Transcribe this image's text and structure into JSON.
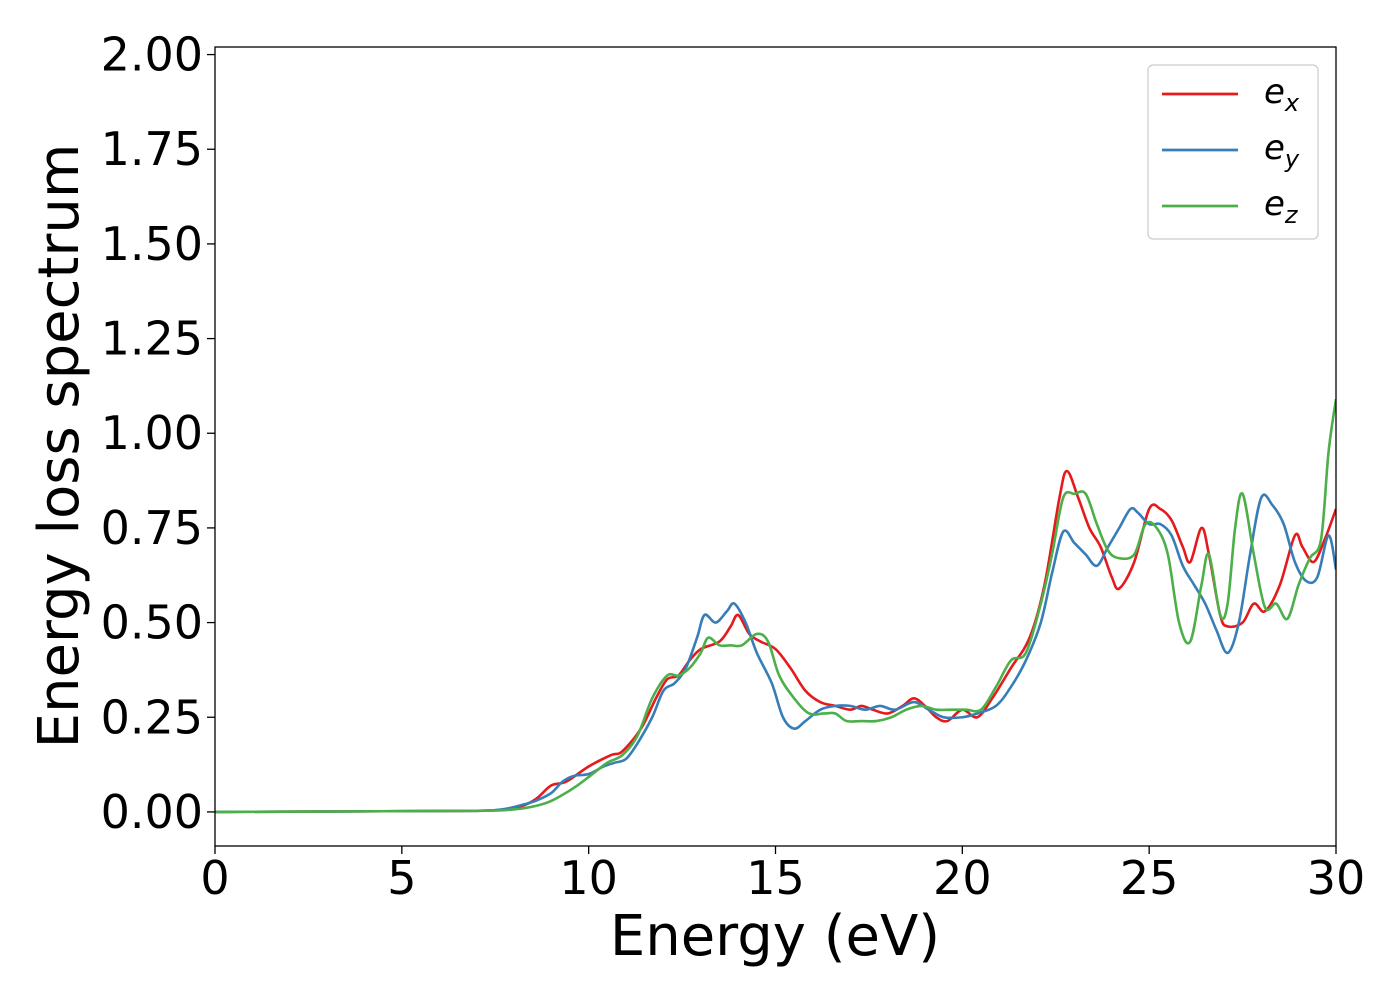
{
  "chart_data": {
    "type": "line",
    "xlabel": "Energy (eV)",
    "ylabel": "Energy loss spectrum",
    "xlim": [
      0,
      30
    ],
    "ylim": [
      -0.09,
      2.02
    ],
    "x_ticks": [
      0,
      5,
      10,
      15,
      20,
      25,
      30
    ],
    "x_tick_labels": [
      "0",
      "5",
      "10",
      "15",
      "20",
      "25",
      "30"
    ],
    "y_ticks": [
      0.0,
      0.25,
      0.5,
      0.75,
      1.0,
      1.25,
      1.5,
      1.75,
      2.0
    ],
    "y_tick_labels": [
      "0.00",
      "0.25",
      "0.50",
      "0.75",
      "1.00",
      "1.25",
      "1.50",
      "1.75",
      "2.00"
    ],
    "grid": false,
    "legend_position": "top-right",
    "series": [
      {
        "name": "e_x",
        "label_base": "e",
        "label_sub": "x",
        "color": "#e41a1c",
        "points": [
          [
            0,
            0
          ],
          [
            5,
            0.002
          ],
          [
            7,
            0.003
          ],
          [
            7.7,
            0.006
          ],
          [
            8.2,
            0.015
          ],
          [
            8.6,
            0.035
          ],
          [
            9.0,
            0.07
          ],
          [
            9.4,
            0.08
          ],
          [
            10.0,
            0.12
          ],
          [
            10.6,
            0.15
          ],
          [
            10.9,
            0.16
          ],
          [
            11.4,
            0.22
          ],
          [
            11.8,
            0.3
          ],
          [
            12.1,
            0.35
          ],
          [
            12.4,
            0.36
          ],
          [
            12.7,
            0.4
          ],
          [
            13.0,
            0.43
          ],
          [
            13.5,
            0.45
          ],
          [
            13.8,
            0.49
          ],
          [
            14.0,
            0.52
          ],
          [
            14.3,
            0.47
          ],
          [
            14.6,
            0.45
          ],
          [
            15.0,
            0.43
          ],
          [
            15.4,
            0.38
          ],
          [
            15.8,
            0.32
          ],
          [
            16.2,
            0.29
          ],
          [
            16.6,
            0.28
          ],
          [
            17.0,
            0.27
          ],
          [
            17.3,
            0.28
          ],
          [
            17.6,
            0.27
          ],
          [
            18.0,
            0.26
          ],
          [
            18.4,
            0.28
          ],
          [
            18.7,
            0.3
          ],
          [
            19.0,
            0.28
          ],
          [
            19.3,
            0.25
          ],
          [
            19.6,
            0.24
          ],
          [
            20.0,
            0.27
          ],
          [
            20.4,
            0.25
          ],
          [
            20.8,
            0.3
          ],
          [
            21.3,
            0.38
          ],
          [
            21.8,
            0.46
          ],
          [
            22.2,
            0.6
          ],
          [
            22.6,
            0.83
          ],
          [
            22.8,
            0.9
          ],
          [
            23.1,
            0.83
          ],
          [
            23.4,
            0.75
          ],
          [
            23.7,
            0.7
          ],
          [
            24.0,
            0.62
          ],
          [
            24.2,
            0.59
          ],
          [
            24.6,
            0.66
          ],
          [
            25.0,
            0.8
          ],
          [
            25.3,
            0.8
          ],
          [
            25.6,
            0.77
          ],
          [
            25.9,
            0.7
          ],
          [
            26.1,
            0.66
          ],
          [
            26.4,
            0.75
          ],
          [
            26.6,
            0.68
          ],
          [
            26.9,
            0.52
          ],
          [
            27.1,
            0.49
          ],
          [
            27.5,
            0.5
          ],
          [
            27.8,
            0.55
          ],
          [
            28.1,
            0.53
          ],
          [
            28.5,
            0.6
          ],
          [
            28.9,
            0.73
          ],
          [
            29.1,
            0.7
          ],
          [
            29.4,
            0.66
          ],
          [
            29.7,
            0.72
          ],
          [
            30.0,
            0.8
          ]
        ]
      },
      {
        "name": "e_y",
        "label_base": "e",
        "label_sub": "y",
        "color": "#377eb8",
        "points": [
          [
            0,
            0
          ],
          [
            5,
            0.002
          ],
          [
            7,
            0.003
          ],
          [
            7.7,
            0.007
          ],
          [
            8.2,
            0.018
          ],
          [
            8.6,
            0.03
          ],
          [
            9.0,
            0.05
          ],
          [
            9.3,
            0.08
          ],
          [
            9.6,
            0.095
          ],
          [
            10.0,
            0.1
          ],
          [
            10.4,
            0.12
          ],
          [
            10.7,
            0.13
          ],
          [
            11.0,
            0.14
          ],
          [
            11.3,
            0.18
          ],
          [
            11.7,
            0.25
          ],
          [
            12.0,
            0.32
          ],
          [
            12.3,
            0.34
          ],
          [
            12.6,
            0.38
          ],
          [
            12.9,
            0.46
          ],
          [
            13.1,
            0.52
          ],
          [
            13.4,
            0.5
          ],
          [
            13.7,
            0.53
          ],
          [
            13.9,
            0.55
          ],
          [
            14.2,
            0.5
          ],
          [
            14.5,
            0.42
          ],
          [
            14.9,
            0.34
          ],
          [
            15.2,
            0.25
          ],
          [
            15.5,
            0.22
          ],
          [
            15.8,
            0.24
          ],
          [
            16.2,
            0.27
          ],
          [
            16.6,
            0.28
          ],
          [
            17.0,
            0.28
          ],
          [
            17.4,
            0.27
          ],
          [
            17.8,
            0.28
          ],
          [
            18.2,
            0.27
          ],
          [
            18.7,
            0.29
          ],
          [
            19.1,
            0.27
          ],
          [
            19.5,
            0.25
          ],
          [
            20.0,
            0.25
          ],
          [
            20.4,
            0.26
          ],
          [
            20.9,
            0.28
          ],
          [
            21.3,
            0.33
          ],
          [
            21.7,
            0.4
          ],
          [
            22.1,
            0.5
          ],
          [
            22.4,
            0.63
          ],
          [
            22.7,
            0.74
          ],
          [
            23.0,
            0.71
          ],
          [
            23.3,
            0.68
          ],
          [
            23.6,
            0.65
          ],
          [
            23.9,
            0.7
          ],
          [
            24.2,
            0.75
          ],
          [
            24.5,
            0.8
          ],
          [
            24.7,
            0.79
          ],
          [
            25.0,
            0.76
          ],
          [
            25.3,
            0.76
          ],
          [
            25.6,
            0.73
          ],
          [
            25.9,
            0.65
          ],
          [
            26.2,
            0.6
          ],
          [
            26.5,
            0.55
          ],
          [
            26.8,
            0.48
          ],
          [
            27.1,
            0.42
          ],
          [
            27.4,
            0.5
          ],
          [
            27.7,
            0.68
          ],
          [
            28.0,
            0.83
          ],
          [
            28.3,
            0.81
          ],
          [
            28.6,
            0.76
          ],
          [
            28.9,
            0.66
          ],
          [
            29.2,
            0.61
          ],
          [
            29.5,
            0.62
          ],
          [
            29.8,
            0.73
          ],
          [
            30.0,
            0.64
          ]
        ]
      },
      {
        "name": "e_z",
        "label_base": "e",
        "label_sub": "z",
        "color": "#4daf4a",
        "points": [
          [
            0,
            0
          ],
          [
            5,
            0.002
          ],
          [
            7,
            0.003
          ],
          [
            7.8,
            0.005
          ],
          [
            8.4,
            0.012
          ],
          [
            8.9,
            0.025
          ],
          [
            9.3,
            0.045
          ],
          [
            9.7,
            0.07
          ],
          [
            10.1,
            0.1
          ],
          [
            10.5,
            0.13
          ],
          [
            10.9,
            0.15
          ],
          [
            11.3,
            0.2
          ],
          [
            11.7,
            0.3
          ],
          [
            12.1,
            0.36
          ],
          [
            12.4,
            0.36
          ],
          [
            12.7,
            0.38
          ],
          [
            13.0,
            0.42
          ],
          [
            13.2,
            0.46
          ],
          [
            13.5,
            0.44
          ],
          [
            13.8,
            0.44
          ],
          [
            14.1,
            0.44
          ],
          [
            14.5,
            0.47
          ],
          [
            14.8,
            0.45
          ],
          [
            15.1,
            0.36
          ],
          [
            15.5,
            0.3
          ],
          [
            15.9,
            0.26
          ],
          [
            16.3,
            0.26
          ],
          [
            16.6,
            0.26
          ],
          [
            16.9,
            0.24
          ],
          [
            17.3,
            0.24
          ],
          [
            17.7,
            0.24
          ],
          [
            18.1,
            0.25
          ],
          [
            18.5,
            0.27
          ],
          [
            18.9,
            0.28
          ],
          [
            19.3,
            0.27
          ],
          [
            19.7,
            0.27
          ],
          [
            20.1,
            0.27
          ],
          [
            20.5,
            0.27
          ],
          [
            20.9,
            0.33
          ],
          [
            21.3,
            0.4
          ],
          [
            21.7,
            0.42
          ],
          [
            22.1,
            0.55
          ],
          [
            22.4,
            0.68
          ],
          [
            22.7,
            0.83
          ],
          [
            23.0,
            0.84
          ],
          [
            23.3,
            0.84
          ],
          [
            23.6,
            0.76
          ],
          [
            23.9,
            0.69
          ],
          [
            24.2,
            0.67
          ],
          [
            24.6,
            0.68
          ],
          [
            24.9,
            0.76
          ],
          [
            25.2,
            0.75
          ],
          [
            25.5,
            0.68
          ],
          [
            25.8,
            0.5
          ],
          [
            26.1,
            0.45
          ],
          [
            26.4,
            0.6
          ],
          [
            26.6,
            0.68
          ],
          [
            26.9,
            0.52
          ],
          [
            27.1,
            0.55
          ],
          [
            27.3,
            0.75
          ],
          [
            27.5,
            0.84
          ],
          [
            27.8,
            0.68
          ],
          [
            28.1,
            0.54
          ],
          [
            28.4,
            0.55
          ],
          [
            28.7,
            0.51
          ],
          [
            29.0,
            0.6
          ],
          [
            29.3,
            0.67
          ],
          [
            29.6,
            0.72
          ],
          [
            29.8,
            0.95
          ],
          [
            30.0,
            1.09
          ]
        ]
      }
    ]
  }
}
